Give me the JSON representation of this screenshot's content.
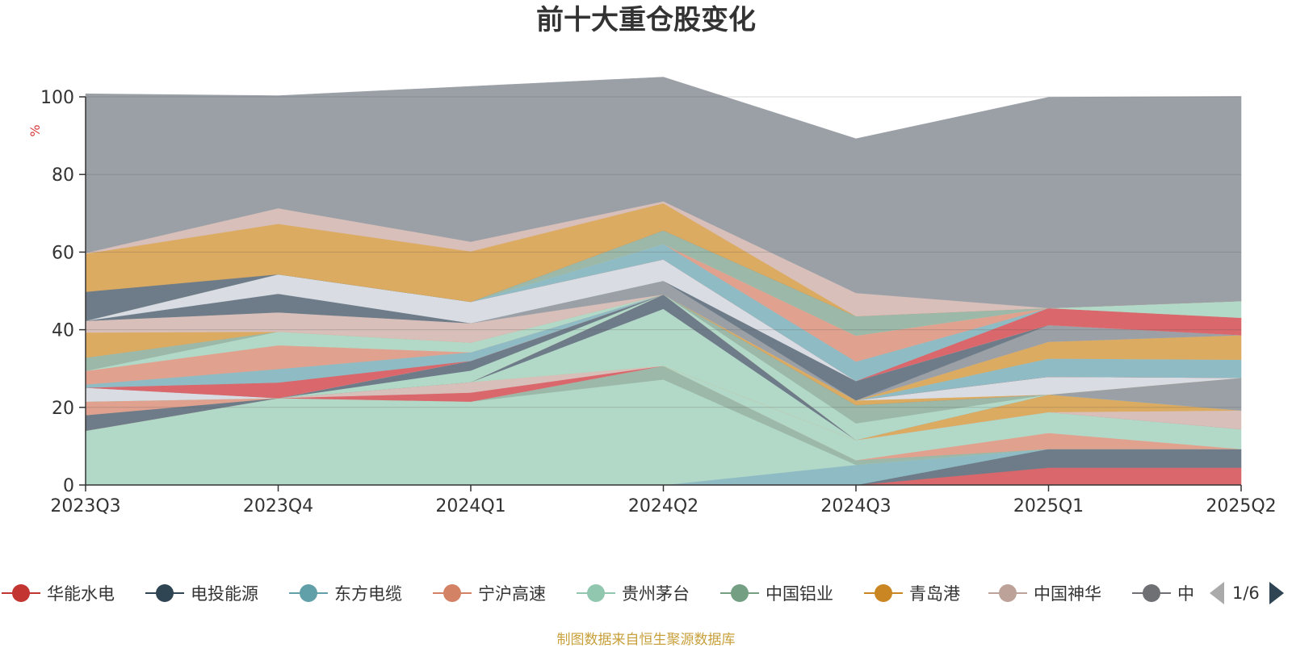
{
  "chart_data": {
    "type": "area",
    "stacked": true,
    "title": "前十大重仓股变化",
    "ylabel": "%",
    "ylim": [
      0,
      100
    ],
    "yticks": [
      0,
      20,
      40,
      60,
      80,
      100
    ],
    "categories": [
      "2023Q3",
      "2023Q4",
      "2024Q1",
      "2024Q2",
      "2024Q3",
      "2025Q1",
      "2025Q2"
    ],
    "grid": true,
    "legend_position": "bottom",
    "series": [
      {
        "name": "",
        "color": "#d9676b",
        "values": [
          0,
          0,
          0,
          0,
          0,
          4.5,
          4.5
        ]
      },
      {
        "name": "",
        "color": "#6e7c89",
        "values": [
          0,
          0,
          0,
          0,
          0,
          4.8,
          4.8
        ]
      },
      {
        "name": "",
        "color": "#8fbcc4",
        "values": [
          0,
          0,
          0,
          0,
          5.2,
          0,
          0
        ]
      },
      {
        "name": "",
        "color": "#b2d9c8",
        "values": [
          14,
          22.4,
          21.5,
          27.2,
          0,
          0,
          0
        ]
      },
      {
        "name": "",
        "color": "#9bb8a8",
        "values": [
          0,
          0,
          0,
          3.5,
          1.2,
          0,
          0
        ]
      },
      {
        "name": "",
        "color": "#e0a28f",
        "values": [
          0,
          0,
          0,
          0,
          0,
          4.1,
          0
        ]
      },
      {
        "name": "",
        "color": "#b2d9c8",
        "values": [
          0,
          0,
          0,
          0,
          5.2,
          5.4,
          5.1
        ]
      },
      {
        "name": "",
        "color": "#d9676b",
        "values": [
          0,
          0,
          2.3,
          0,
          0,
          0,
          0
        ]
      },
      {
        "name": "",
        "color": "#d8bfba",
        "values": [
          0,
          0,
          2.7,
          0,
          0,
          0,
          4.8
        ]
      },
      {
        "name": "",
        "color": "#dcab62",
        "values": [
          0,
          0,
          0,
          0,
          0,
          4.5,
          0
        ]
      },
      {
        "name": "",
        "color": "#b2d9c8",
        "values": [
          0,
          0,
          0,
          14.7,
          0,
          0,
          0
        ]
      },
      {
        "name": "",
        "color": "#9aa0a6",
        "values": [
          0,
          0,
          0,
          0,
          0,
          0,
          8.4
        ]
      },
      {
        "name": "",
        "color": "#6e7c89",
        "values": [
          4,
          0,
          0,
          3.7,
          0,
          0,
          0
        ]
      },
      {
        "name": "",
        "color": "#e0a28f",
        "values": [
          3.5,
          0,
          0,
          0,
          0,
          0,
          0
        ]
      },
      {
        "name": "",
        "color": "#b2d9c8",
        "values": [
          0,
          0,
          3,
          0,
          4.3,
          0,
          0
        ]
      },
      {
        "name": "",
        "color": "#9bb8a8",
        "values": [
          0,
          0,
          0,
          0,
          4.7,
          0,
          0
        ]
      },
      {
        "name": "",
        "color": "#6e7c89",
        "values": [
          0,
          0,
          2.5,
          0,
          0,
          0,
          0
        ]
      },
      {
        "name": "",
        "color": "#dcab62",
        "values": [
          0,
          0,
          0,
          0,
          1.2,
          0,
          0
        ]
      },
      {
        "name": "",
        "color": "#d9dde3",
        "values": [
          3.6,
          0,
          0,
          0,
          0,
          4.6,
          0
        ]
      },
      {
        "name": "",
        "color": "#d8bfba",
        "values": [
          0,
          0,
          0,
          0,
          0,
          0,
          0
        ]
      },
      {
        "name": "",
        "color": "#9aa0a6",
        "values": [
          0,
          0,
          0,
          0,
          0,
          0,
          0
        ]
      },
      {
        "name": "",
        "color": "#d9676b",
        "values": [
          0,
          4,
          0,
          0,
          0,
          0,
          0
        ]
      },
      {
        "name": "",
        "color": "#8fbcc4",
        "values": [
          0.8,
          3.5,
          2.2,
          0,
          0,
          4.7,
          4.7
        ]
      },
      {
        "name": "",
        "color": "#e0a28f",
        "values": [
          3.5,
          6.1,
          0,
          0,
          0,
          0,
          0
        ]
      },
      {
        "name": "",
        "color": "#b2d9c8",
        "values": [
          0,
          3.5,
          2.5,
          0,
          0,
          0,
          0
        ]
      },
      {
        "name": "",
        "color": "#9bb8a8",
        "values": [
          3.4,
          0,
          0,
          0,
          0,
          0,
          0
        ]
      },
      {
        "name": "",
        "color": "#dcab62",
        "values": [
          6.5,
          0,
          0,
          0,
          0,
          4.3,
          6.3
        ]
      },
      {
        "name": "",
        "color": "#d8bfba",
        "values": [
          3,
          5,
          5,
          0,
          0,
          0,
          0
        ]
      },
      {
        "name": "",
        "color": "#9aa0a6",
        "values": [
          0,
          0,
          0,
          3.5,
          0,
          4.3,
          0
        ]
      },
      {
        "name": "",
        "color": "#6e7c89",
        "values": [
          0,
          4.8,
          0,
          0,
          5,
          0,
          0
        ]
      },
      {
        "name": "",
        "color": "#d9dde3",
        "values": [
          0,
          5,
          5.5,
          5.5,
          0,
          0,
          0
        ]
      },
      {
        "name": "",
        "color": "#d9676b",
        "values": [
          0,
          0,
          0,
          0,
          0,
          4.4,
          4.5
        ]
      },
      {
        "name": "",
        "color": "#8fbcc4",
        "values": [
          0,
          0,
          0,
          4,
          5,
          0,
          0
        ]
      },
      {
        "name": "",
        "color": "#e0a28f",
        "values": [
          0,
          0,
          0,
          0,
          6.7,
          0,
          0
        ]
      },
      {
        "name": "",
        "color": "#b2d9c8",
        "values": [
          0,
          0,
          0,
          0,
          0,
          0,
          4.3
        ]
      },
      {
        "name": "",
        "color": "#9bb8a8",
        "values": [
          0,
          0,
          0,
          3.5,
          5,
          0,
          0
        ]
      },
      {
        "name": "",
        "color": "#6e7c89",
        "values": [
          7.5,
          0,
          0,
          0,
          0,
          0,
          0
        ]
      },
      {
        "name": "",
        "color": "#dcab62",
        "values": [
          9.8,
          13,
          13,
          7,
          0,
          0,
          0
        ]
      },
      {
        "name": "",
        "color": "#d8bfba",
        "values": [
          0.2,
          4,
          2.5,
          0.5,
          6,
          0,
          0
        ]
      },
      {
        "name": "",
        "color": "#9aa0a6",
        "values": [
          41,
          29,
          40,
          32,
          39.7,
          54.3,
          52.7
        ]
      }
    ]
  },
  "legend": {
    "items": [
      {
        "label": "华能水电",
        "color": "#c23531"
      },
      {
        "label": "电投能源",
        "color": "#2f4554"
      },
      {
        "label": "东方电缆",
        "color": "#61a0a8"
      },
      {
        "label": "宁沪高速",
        "color": "#d48265"
      },
      {
        "label": "贵州茅台",
        "color": "#91c7ae"
      },
      {
        "label": "中国铝业",
        "color": "#749f83"
      },
      {
        "label": "青岛港",
        "color": "#ca8622"
      },
      {
        "label": "中国神华",
        "color": "#bda29a"
      },
      {
        "label": "中广核",
        "color": "#6e7074"
      }
    ],
    "page": "1/6"
  },
  "source_note": "制图数据来自恒生聚源数据库"
}
